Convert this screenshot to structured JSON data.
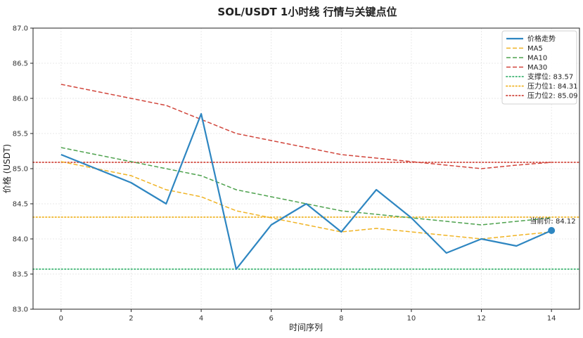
{
  "chart_data": {
    "type": "line",
    "title": "SOL/USDT 1小时线 行情与关键点位",
    "xlabel": "时间序列",
    "ylabel": "价格 (USDT)",
    "xlim": [
      -0.8,
      14.8
    ],
    "ylim": [
      83.0,
      87.0
    ],
    "x_ticks": [
      0,
      2,
      4,
      6,
      8,
      10,
      12,
      14
    ],
    "y_ticks": [
      83.0,
      83.5,
      84.0,
      84.5,
      85.0,
      85.5,
      86.0,
      86.5,
      87.0
    ],
    "grid": true,
    "legend_position": "top-right",
    "x": [
      0,
      1,
      2,
      3,
      4,
      5,
      6,
      7,
      8,
      9,
      10,
      11,
      12,
      13,
      14
    ],
    "series": [
      {
        "name": "价格走势",
        "color": "#2e86c1",
        "style": "solid",
        "values": [
          85.2,
          85.0,
          84.8,
          84.5,
          85.78,
          83.57,
          84.2,
          84.5,
          84.1,
          84.7,
          84.3,
          83.8,
          84.0,
          83.9,
          84.12
        ]
      },
      {
        "name": "MA5",
        "color": "#f0b323",
        "style": "dashed",
        "values": [
          85.1,
          85.0,
          84.9,
          84.7,
          84.6,
          84.4,
          84.3,
          84.2,
          84.1,
          84.15,
          84.1,
          84.05,
          84.0,
          84.05,
          84.1
        ]
      },
      {
        "name": "MA10",
        "color": "#4ea24e",
        "style": "dashed",
        "values": [
          85.3,
          85.2,
          85.1,
          85.0,
          84.9,
          84.7,
          84.6,
          84.5,
          84.4,
          84.35,
          84.3,
          84.25,
          84.2,
          84.25,
          84.3
        ]
      },
      {
        "name": "MA30",
        "color": "#d1453b",
        "style": "dashed",
        "values": [
          86.2,
          86.1,
          86.0,
          85.9,
          85.7,
          85.5,
          85.4,
          85.3,
          85.2,
          85.15,
          85.1,
          85.05,
          85.0,
          85.05,
          85.09
        ]
      }
    ],
    "reference_lines": [
      {
        "name": "支撑位: 83.57",
        "value": 83.57,
        "color": "#3cb371"
      },
      {
        "name": "压力位1: 84.31",
        "value": 84.31,
        "color": "#f0b323"
      },
      {
        "name": "压力位2: 85.09",
        "value": 85.09,
        "color": "#d1453b"
      }
    ],
    "current_price": {
      "x": 14,
      "value": 84.12,
      "label": "当前价: 84.12",
      "color": "#2e86c1"
    }
  }
}
